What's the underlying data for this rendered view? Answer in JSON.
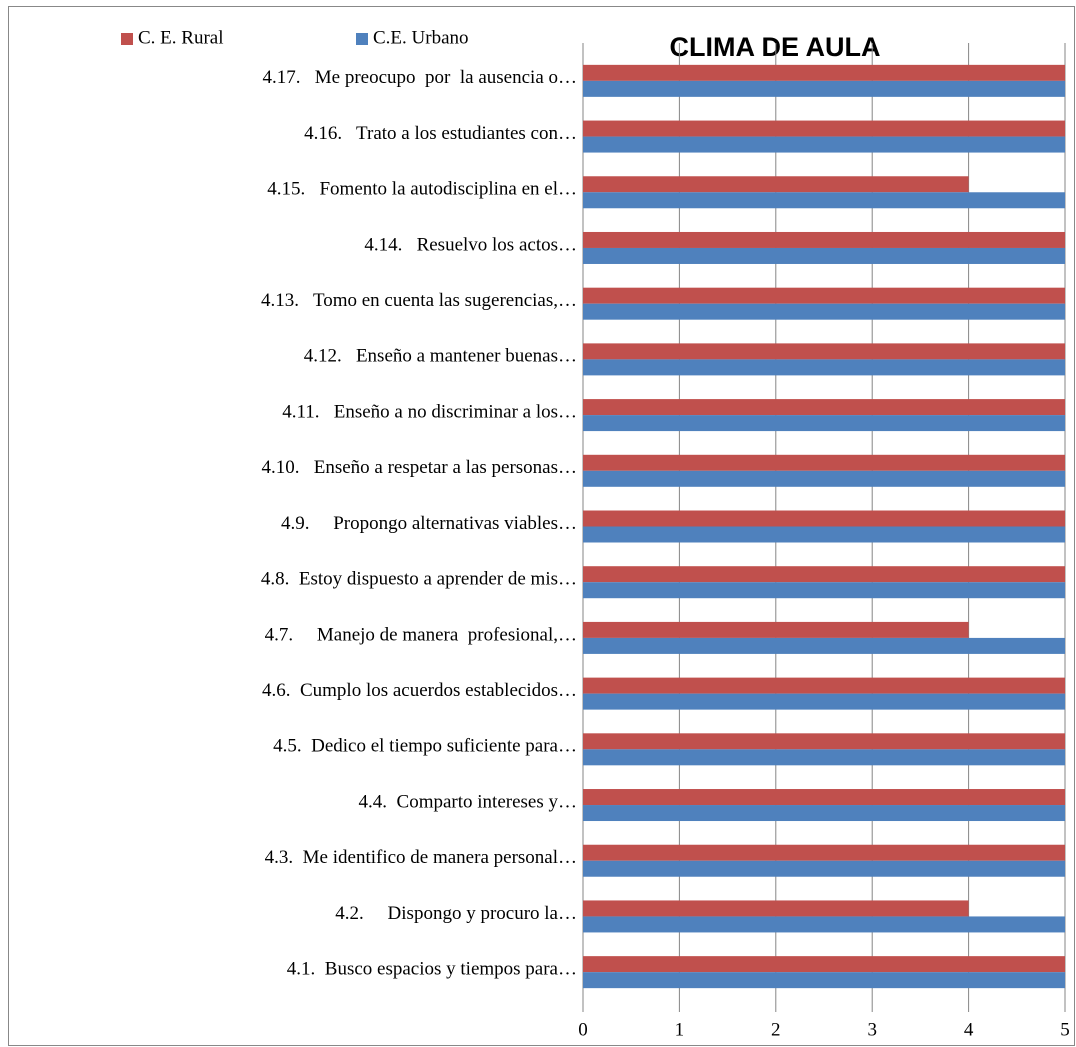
{
  "chart_data": {
    "type": "barh",
    "title": "CLIMA DE AULA",
    "categories": [
      "4.1.  Busco espacios y tiempos para…",
      "4.2.     Dispongo y procuro la…",
      "4.3.  Me identifico de manera personal…",
      "4.4.  Comparto intereses y…",
      "4.5.  Dedico el tiempo suficiente para…",
      "4.6.  Cumplo los acuerdos establecidos…",
      "4.7.     Manejo de manera  profesional,…",
      "4.8.  Estoy dispuesto a aprender de mis…",
      "4.9.     Propongo alternativas viables…",
      "4.10.   Enseño a respetar a las personas…",
      "4.11.   Enseño a no discriminar a los…",
      "4.12.   Enseño a mantener buenas…",
      "4.13.   Tomo en cuenta las sugerencias,…",
      "4.14.   Resuelvo los actos…",
      "4.15.   Fomento la autodisciplina en el…",
      "4.16.   Trato a los estudiantes con…",
      "4.17.   Me preocupo  por  la ausencia o…"
    ],
    "series": [
      {
        "name": "C. E. Rural",
        "color": "#c0504d",
        "values": [
          5,
          4,
          5,
          5,
          5,
          5,
          4,
          5,
          5,
          5,
          5,
          5,
          5,
          5,
          4,
          5,
          5
        ]
      },
      {
        "name": "C.E. Urbano",
        "color": "#4f81bd",
        "values": [
          5,
          5,
          5,
          5,
          5,
          5,
          5,
          5,
          5,
          5,
          5,
          5,
          5,
          5,
          5,
          5,
          5
        ]
      }
    ],
    "xlim": [
      0,
      5
    ],
    "xticks": [
      0,
      1,
      2,
      3,
      4,
      5
    ],
    "grid": true
  }
}
